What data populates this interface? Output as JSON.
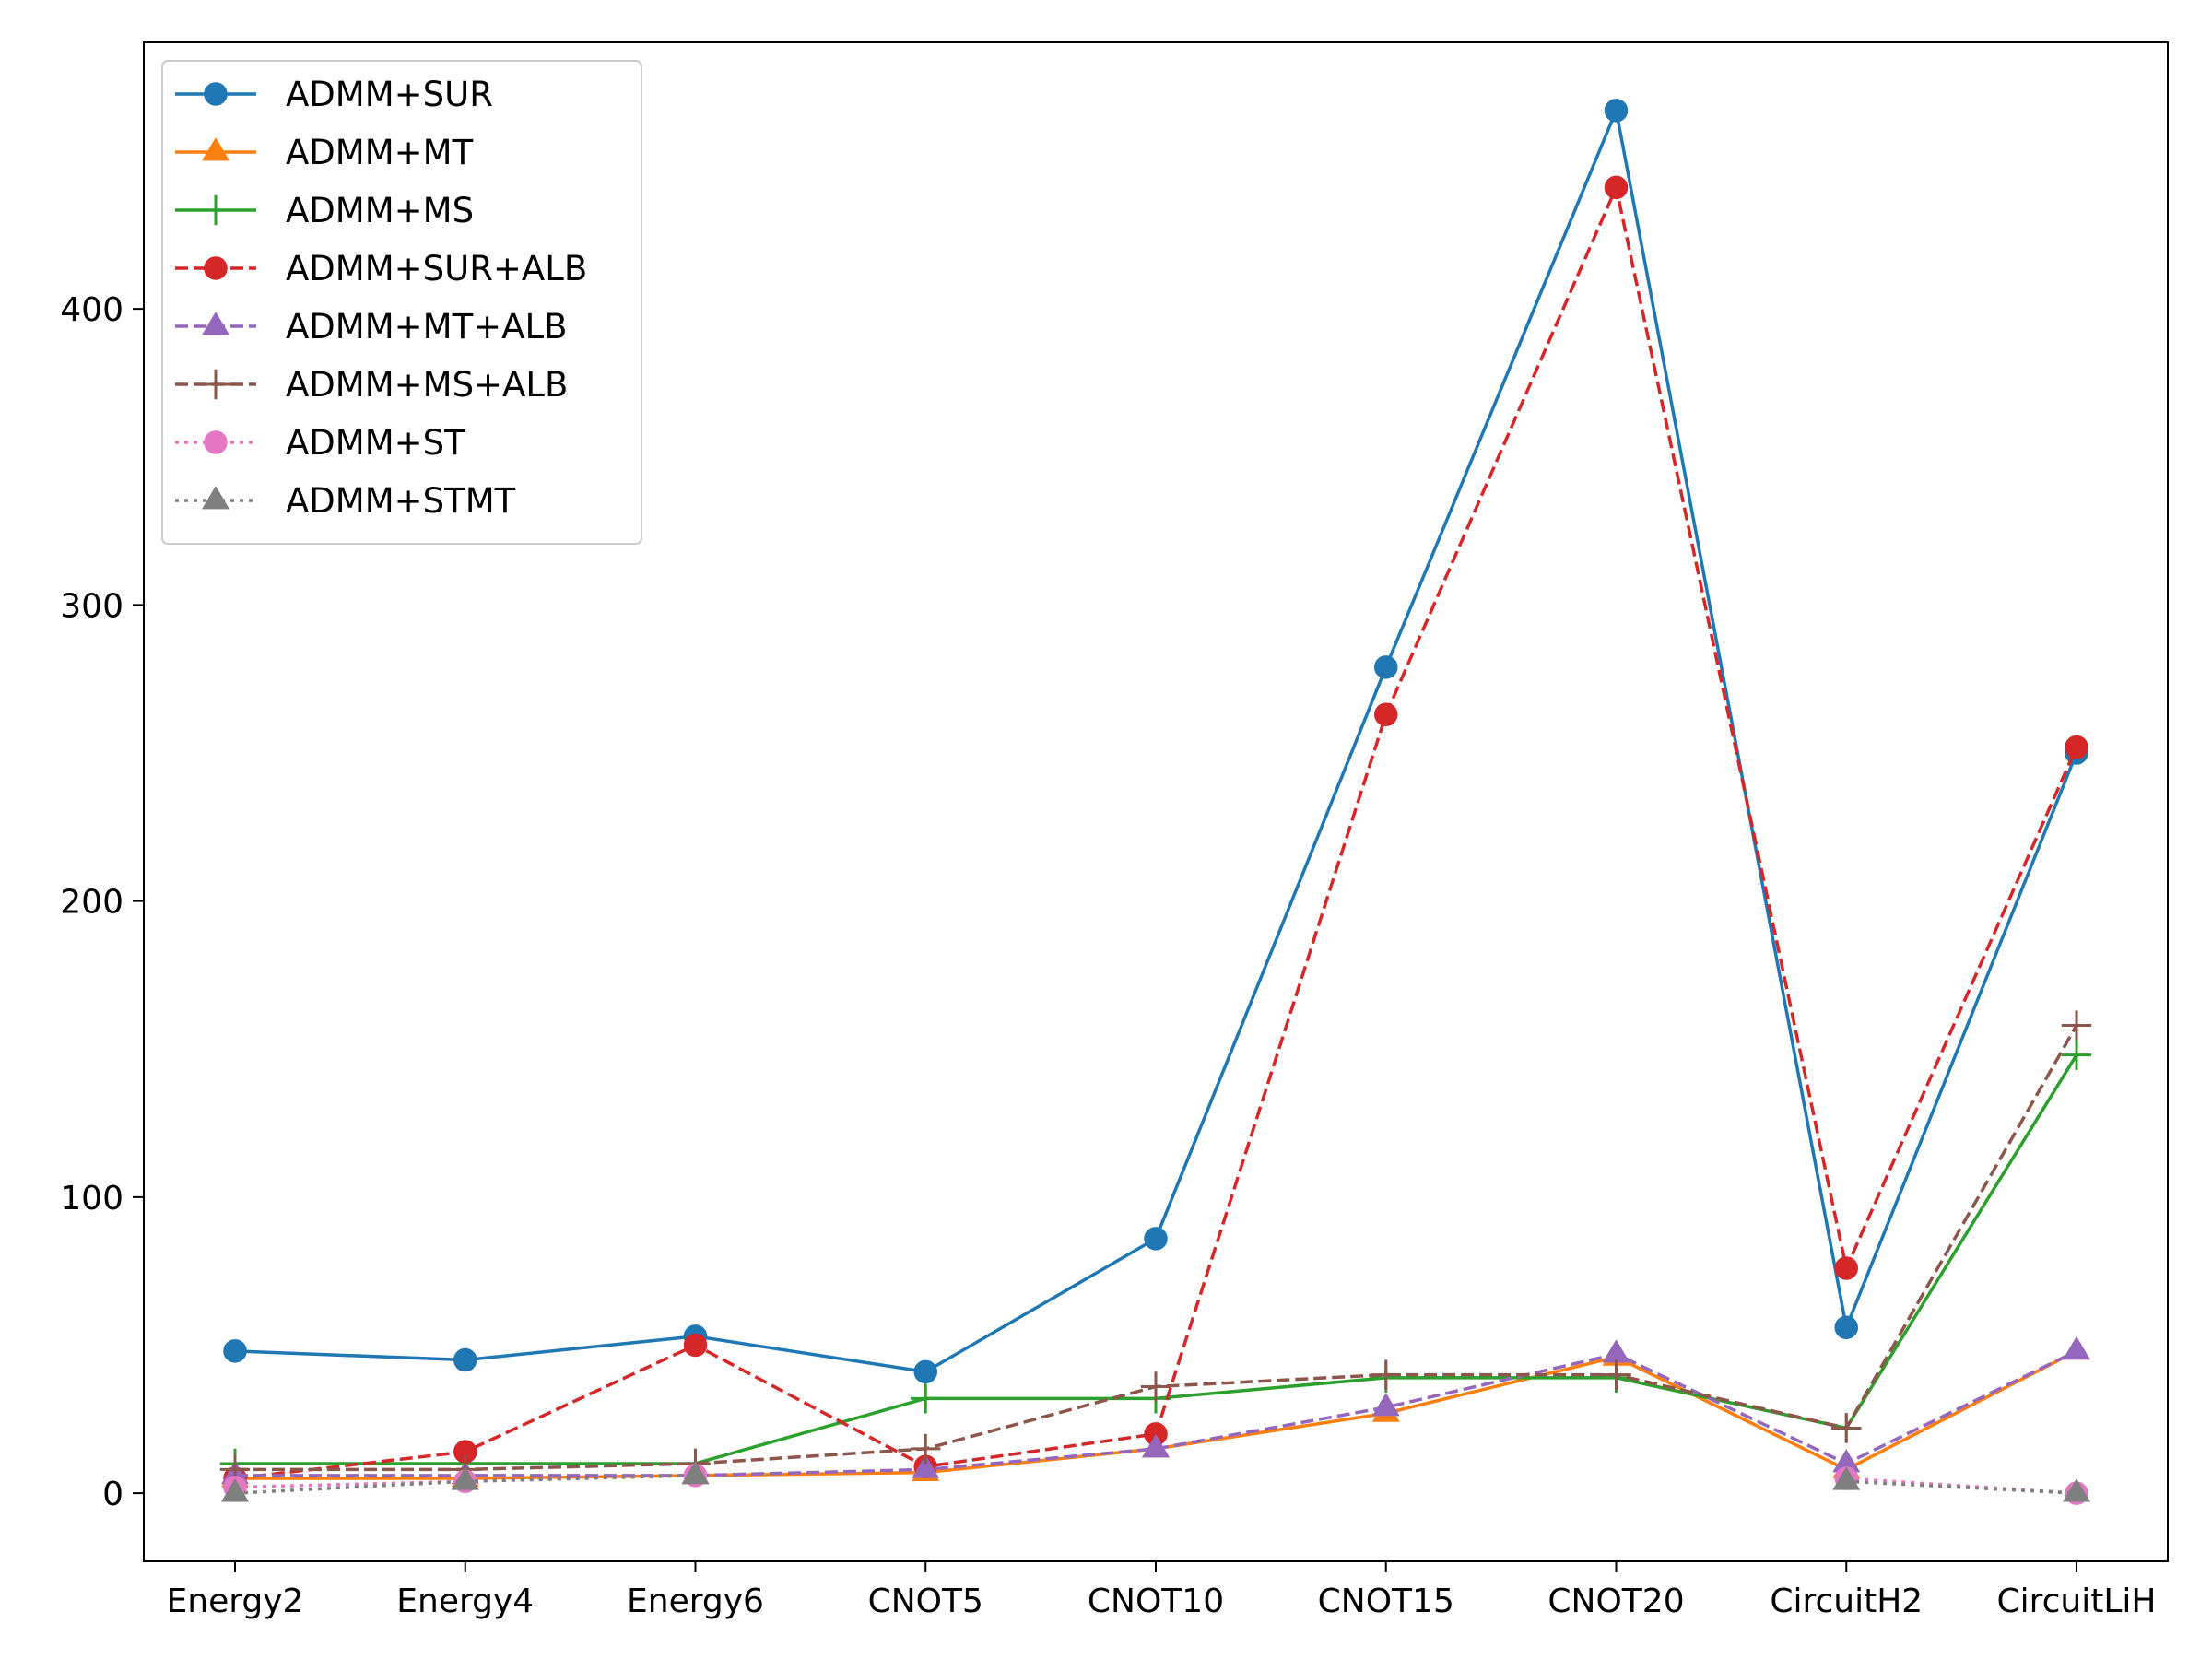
{
  "chart_data": {
    "type": "line",
    "title": "",
    "xlabel": "",
    "ylabel": "",
    "categories": [
      "Energy2",
      "Energy4",
      "Energy6",
      "CNOT5",
      "CNOT10",
      "CNOT15",
      "CNOT20",
      "CircuitH2",
      "CircuitLiH"
    ],
    "ylim": [
      -23,
      490
    ],
    "yticks": [
      0,
      100,
      200,
      300,
      400
    ],
    "grid": false,
    "legend_position": "top-left",
    "series": [
      {
        "name": "ADMM+SUR",
        "color": "#1f77b4",
        "linestyle": "solid",
        "marker": "circle",
        "values": [
          48,
          45,
          53,
          41,
          86,
          279,
          467,
          56,
          250
        ]
      },
      {
        "name": "ADMM+MT",
        "color": "#ff7f0e",
        "linestyle": "solid",
        "marker": "triangle",
        "values": [
          5,
          5,
          6,
          7,
          15,
          27,
          46,
          8,
          48
        ]
      },
      {
        "name": "ADMM+MS",
        "color": "#2ca02c",
        "linestyle": "solid",
        "marker": "plus",
        "values": [
          10,
          10,
          10,
          32,
          32,
          39,
          39,
          22,
          148
        ]
      },
      {
        "name": "ADMM+SUR+ALB",
        "color": "#d62728",
        "linestyle": "dashed",
        "marker": "circle",
        "values": [
          5,
          14,
          50,
          9,
          20,
          263,
          441,
          76,
          252
        ]
      },
      {
        "name": "ADMM+MT+ALB",
        "color": "#9467bd",
        "linestyle": "dashed",
        "marker": "triangle",
        "values": [
          6,
          6,
          6,
          8,
          15,
          29,
          47,
          10,
          48
        ]
      },
      {
        "name": "ADMM+MS+ALB",
        "color": "#8c564b",
        "linestyle": "dashed",
        "marker": "plus",
        "values": [
          8,
          8,
          10,
          15,
          36,
          40,
          40,
          22,
          158
        ]
      },
      {
        "name": "ADMM+ST",
        "color": "#e377c2",
        "linestyle": "dotted",
        "marker": "circle",
        "values": [
          2,
          4,
          6,
          null,
          null,
          null,
          null,
          5,
          0
        ]
      },
      {
        "name": "ADMM+STMT",
        "color": "#7f7f7f",
        "linestyle": "dotted",
        "marker": "triangle",
        "values": [
          0,
          4,
          6,
          null,
          null,
          null,
          null,
          4,
          0
        ]
      }
    ]
  }
}
